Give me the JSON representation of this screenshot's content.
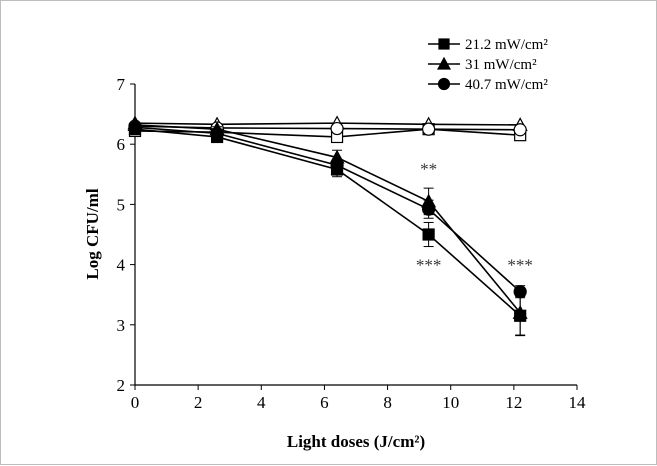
{
  "chart_data": {
    "type": "line",
    "xlabel": "Light doses (J/cm²)",
    "ylabel": "Log CFU/ml",
    "xlim": [
      0,
      14
    ],
    "ylim": [
      2,
      7
    ],
    "xticks": [
      0,
      2,
      4,
      6,
      8,
      10,
      12,
      14
    ],
    "yticks": [
      2,
      3,
      4,
      5,
      6,
      7
    ],
    "grid": false,
    "legend_position": "top-right",
    "series": [
      {
        "name": "21.2 mW/cm²",
        "marker": "square",
        "filled": true,
        "x": [
          0,
          2.6,
          6.4,
          9.3,
          12.2
        ],
        "y": [
          6.25,
          6.12,
          5.58,
          4.5,
          3.15
        ],
        "err": [
          0.05,
          0.05,
          0.12,
          0.2,
          0.32
        ]
      },
      {
        "name": "31 mW/cm²",
        "marker": "triangle",
        "filled": true,
        "x": [
          0,
          2.6,
          6.4,
          9.3,
          12.2
        ],
        "y": [
          6.32,
          6.25,
          5.78,
          5.05,
          3.2
        ],
        "err": [
          0.03,
          0.04,
          0.12,
          0.22,
          0.38
        ]
      },
      {
        "name": "40.7 mW/cm²",
        "marker": "circle",
        "filled": true,
        "x": [
          0,
          2.6,
          6.4,
          9.3,
          12.2
        ],
        "y": [
          6.28,
          6.18,
          5.65,
          4.92,
          3.55
        ],
        "err": [
          0.04,
          0.05,
          0.1,
          0.15,
          0.1
        ]
      },
      {
        "marker": "square",
        "filled": false,
        "x": [
          0,
          2.6,
          6.4,
          9.3,
          12.2
        ],
        "y": [
          6.22,
          6.2,
          6.12,
          6.25,
          6.15
        ],
        "err": [
          0,
          0,
          0,
          0,
          0
        ]
      },
      {
        "marker": "triangle",
        "filled": false,
        "x": [
          0,
          2.6,
          6.4,
          9.3,
          12.2
        ],
        "y": [
          6.35,
          6.33,
          6.35,
          6.33,
          6.32
        ],
        "err": [
          0,
          0,
          0,
          0,
          0
        ]
      },
      {
        "marker": "circle",
        "filled": false,
        "x": [
          0,
          2.6,
          6.4,
          9.3,
          12.2
        ],
        "y": [
          6.3,
          6.27,
          6.26,
          6.25,
          6.24
        ],
        "err": [
          0,
          0,
          0,
          0,
          0
        ]
      }
    ],
    "annotations": [
      {
        "text": "**",
        "x": 9.3,
        "y": 5.5
      },
      {
        "text": "***",
        "x": 9.3,
        "y": 3.9
      },
      {
        "text": "***",
        "x": 12.2,
        "y": 3.9
      }
    ]
  }
}
